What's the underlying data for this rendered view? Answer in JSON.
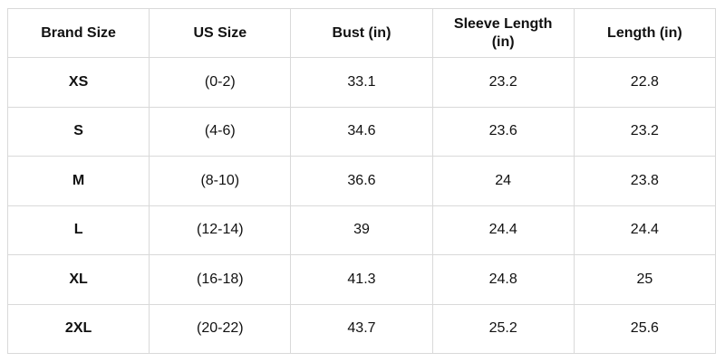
{
  "table": {
    "headers": [
      "Brand Size",
      "US Size",
      "Bust (in)",
      "Sleeve Length (in)",
      "Length (in)"
    ],
    "rows": [
      [
        "XS",
        "(0-2)",
        33.1,
        23.2,
        22.8
      ],
      [
        "S",
        "(4-6)",
        34.6,
        23.6,
        23.2
      ],
      [
        "M",
        "(8-10)",
        36.6,
        24,
        23.8
      ],
      [
        "L",
        "(12-14)",
        39,
        24.4,
        24.4
      ],
      [
        "XL",
        "(16-18)",
        41.3,
        24.8,
        25
      ],
      [
        "2XL",
        "(20-22)",
        43.7,
        25.2,
        25.6
      ]
    ]
  }
}
